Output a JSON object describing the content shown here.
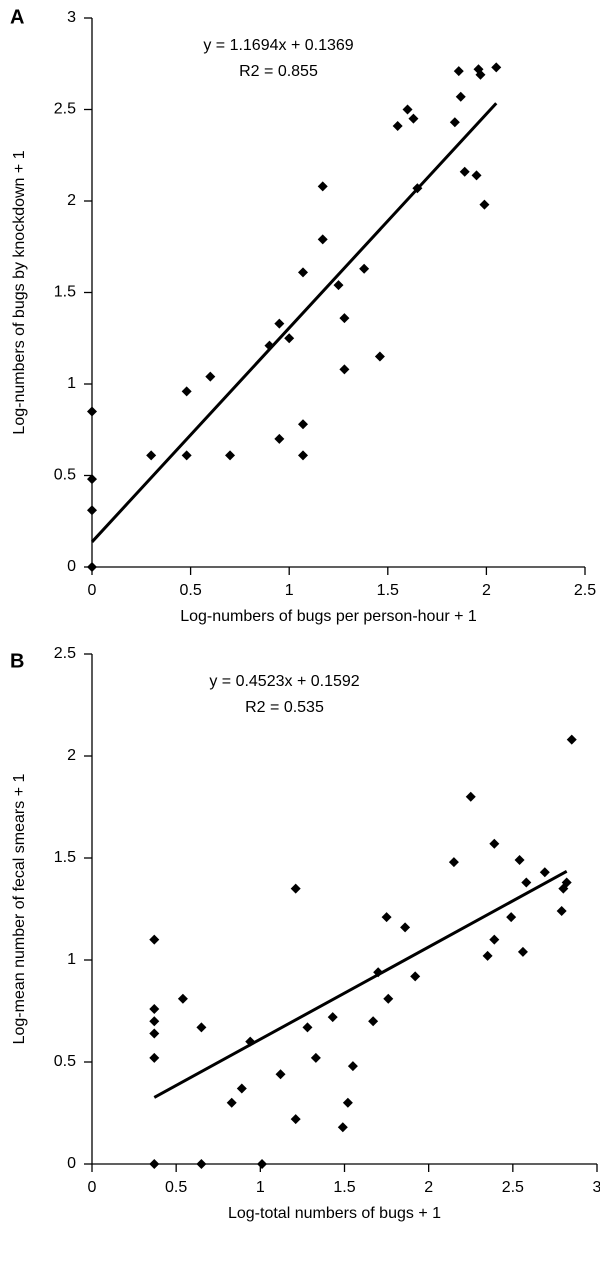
{
  "chart_data": [
    {
      "type": "scatter",
      "panel": "A",
      "annotations": [
        "y = 1.1694x + 0.1369",
        "R2 = 0.855"
      ],
      "x_label": "Log-numbers of bugs per person-hour + 1",
      "y_label": "Log-numbers of bugs by knockdown + 1",
      "xlim": [
        0,
        2.5
      ],
      "xticks": [
        0,
        0.5,
        1,
        1.5,
        2,
        2.5
      ],
      "ylim": [
        0,
        3
      ],
      "yticks": [
        0,
        0.5,
        1,
        1.5,
        2,
        2.5,
        3
      ],
      "color": "#000000",
      "x": [
        0,
        0,
        0,
        0,
        0.3,
        0.48,
        0.48,
        0.6,
        0.7,
        0.9,
        0.95,
        0.95,
        1.0,
        1.07,
        1.07,
        1.07,
        1.17,
        1.17,
        1.25,
        1.28,
        1.28,
        1.38,
        1.46,
        1.55,
        1.6,
        1.63,
        1.65,
        1.84,
        1.86,
        1.87,
        1.89,
        1.95,
        1.96,
        1.97,
        1.99,
        2.05
      ],
      "values": [
        0.85,
        0.48,
        0.31,
        0,
        0.61,
        0.96,
        0.61,
        1.04,
        0.61,
        1.21,
        1.33,
        0.7,
        1.25,
        1.61,
        0.78,
        0.61,
        1.79,
        2.08,
        1.54,
        1.36,
        1.08,
        1.63,
        1.15,
        2.41,
        2.5,
        2.45,
        2.07,
        2.43,
        2.71,
        2.57,
        2.16,
        2.14,
        2.72,
        2.69,
        1.98,
        2.73
      ],
      "trendline": {
        "slope": 1.1694,
        "intercept": 0.1369,
        "x_range": [
          0,
          2.05
        ]
      }
    },
    {
      "type": "scatter",
      "panel": "B",
      "annotations": [
        "y = 0.4523x + 0.1592",
        "R2 = 0.535"
      ],
      "x_label": "Log-total numbers of bugs + 1",
      "y_label": "Log-mean number of fecal smears + 1",
      "xlim": [
        0,
        3
      ],
      "xticks": [
        0,
        0.5,
        1,
        1.5,
        2,
        2.5,
        3
      ],
      "ylim": [
        0,
        2.5
      ],
      "yticks": [
        0,
        0.5,
        1,
        1.5,
        2,
        2.5
      ],
      "color": "#000000",
      "x": [
        0.37,
        0.37,
        0.37,
        0.37,
        0.37,
        0.37,
        0.54,
        0.65,
        0.65,
        0.83,
        0.89,
        0.94,
        1.01,
        1.12,
        1.21,
        1.21,
        1.28,
        1.33,
        1.43,
        1.49,
        1.52,
        1.55,
        1.67,
        1.7,
        1.75,
        1.76,
        1.86,
        1.92,
        2.15,
        2.25,
        2.35,
        2.39,
        2.39,
        2.49,
        2.54,
        2.56,
        2.58,
        2.69,
        2.79,
        2.8,
        2.82,
        2.85
      ],
      "values": [
        1.1,
        0.76,
        0.7,
        0.64,
        0.52,
        0,
        0.81,
        0,
        0.67,
        0.3,
        0.37,
        0.6,
        0,
        0.44,
        0.22,
        1.35,
        0.67,
        0.52,
        0.72,
        0.18,
        0.3,
        0.48,
        0.7,
        0.94,
        1.21,
        0.81,
        1.16,
        0.92,
        1.48,
        1.8,
        1.02,
        1.1,
        1.57,
        1.21,
        1.49,
        1.04,
        1.38,
        1.43,
        1.24,
        1.35,
        1.38,
        2.08
      ],
      "trendline": {
        "slope": 0.4523,
        "intercept": 0.1592,
        "x_range": [
          0.37,
          2.82
        ]
      }
    }
  ]
}
